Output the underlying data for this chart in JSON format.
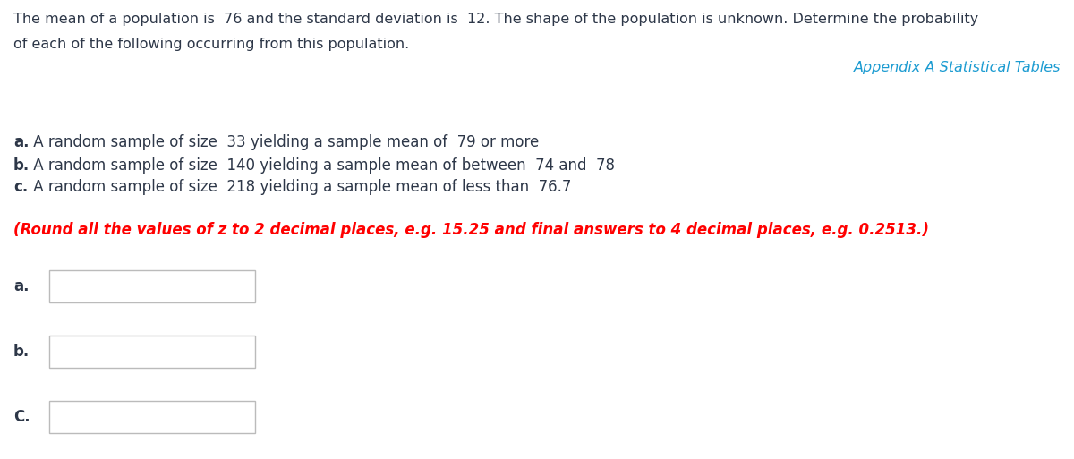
{
  "background_color": "#ffffff",
  "main_text_line1": "The mean of a population is  76 and the standard deviation is  12. The shape of the population is unknown. Determine the probability",
  "main_text_line2": "of each of the following occurring from this population.",
  "link_text": "Appendix A Statistical Tables",
  "link_color": "#1B9BD1",
  "part_a_bold": "a.",
  "part_a_rest": " A random sample of size  33 yielding a sample mean of  79 or more",
  "part_b_bold": "b.",
  "part_b_rest": " A random sample of size  140 yielding a sample mean of between  74 and  78",
  "part_c_bold": "c.",
  "part_c_rest": " A random sample of size  218 yielding a sample mean of less than  76.7",
  "round_note": "(Round all the values of z to 2 decimal places, e.g. 15.25 and final answers to 4 decimal places, e.g. 0.2513.)",
  "round_color": "#FF0000",
  "label_a": "a.",
  "label_b": "b.",
  "label_c": "C.",
  "box_color": "#ffffff",
  "box_edge_color": "#bbbbbb",
  "main_text_color": "#2d3748",
  "label_fontsize": 12,
  "main_fontsize": 11.5,
  "parts_fontsize": 12,
  "round_fontsize": 12
}
